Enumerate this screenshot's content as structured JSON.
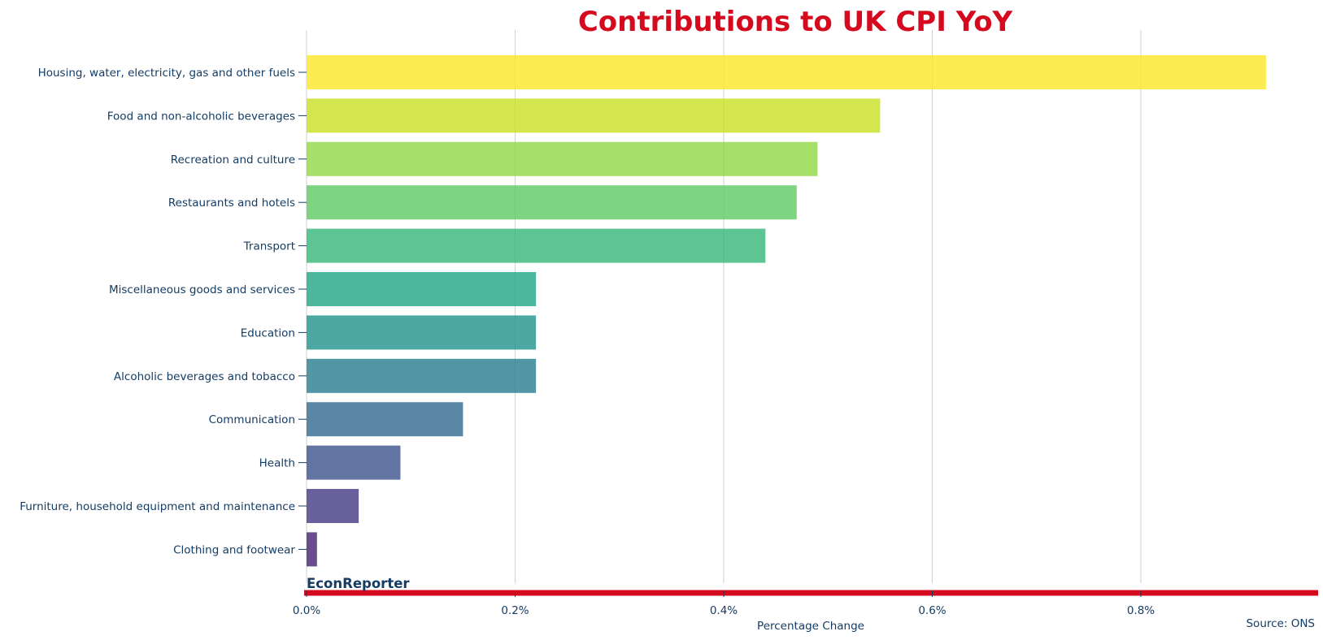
{
  "chart_data": {
    "type": "bar",
    "orientation": "horizontal",
    "title": "Contributions to UK CPI YoY",
    "xlabel": "Percentage Change",
    "ylabel": "",
    "xlim": [
      0,
      0.97
    ],
    "x_ticks": [
      0.0,
      0.2,
      0.4,
      0.6,
      0.8
    ],
    "x_tick_labels": [
      "0.0%",
      "0.2%",
      "0.4%",
      "0.6%",
      "0.8%"
    ],
    "grid": "vertical",
    "categories": [
      "Housing, water, electricity, gas and other fuels",
      "Food and non-alcoholic beverages",
      "Recreation and culture",
      "Restaurants and hotels",
      "Transport",
      "Miscellaneous goods and services",
      "Education",
      "Alcoholic beverages and tobacco",
      "Communication",
      "Health",
      "Furniture, household equipment and maintenance",
      "Clothing and footwear"
    ],
    "values": [
      0.92,
      0.55,
      0.49,
      0.47,
      0.44,
      0.22,
      0.22,
      0.22,
      0.15,
      0.09,
      0.05,
      0.01
    ],
    "bar_colors": [
      "#fde725",
      "#c8e020",
      "#90d743",
      "#5ec962",
      "#35b779",
      "#20a486",
      "#21918c",
      "#287c8e",
      "#31688e",
      "#3b528b",
      "#443983",
      "#481f70"
    ],
    "brand": "EconReporter",
    "source": "Source: ONS"
  },
  "colors": {
    "title": "#d50a1e",
    "text": "#143c64",
    "accent_line": "#d50a1e",
    "grid": "#d0d0d0"
  }
}
